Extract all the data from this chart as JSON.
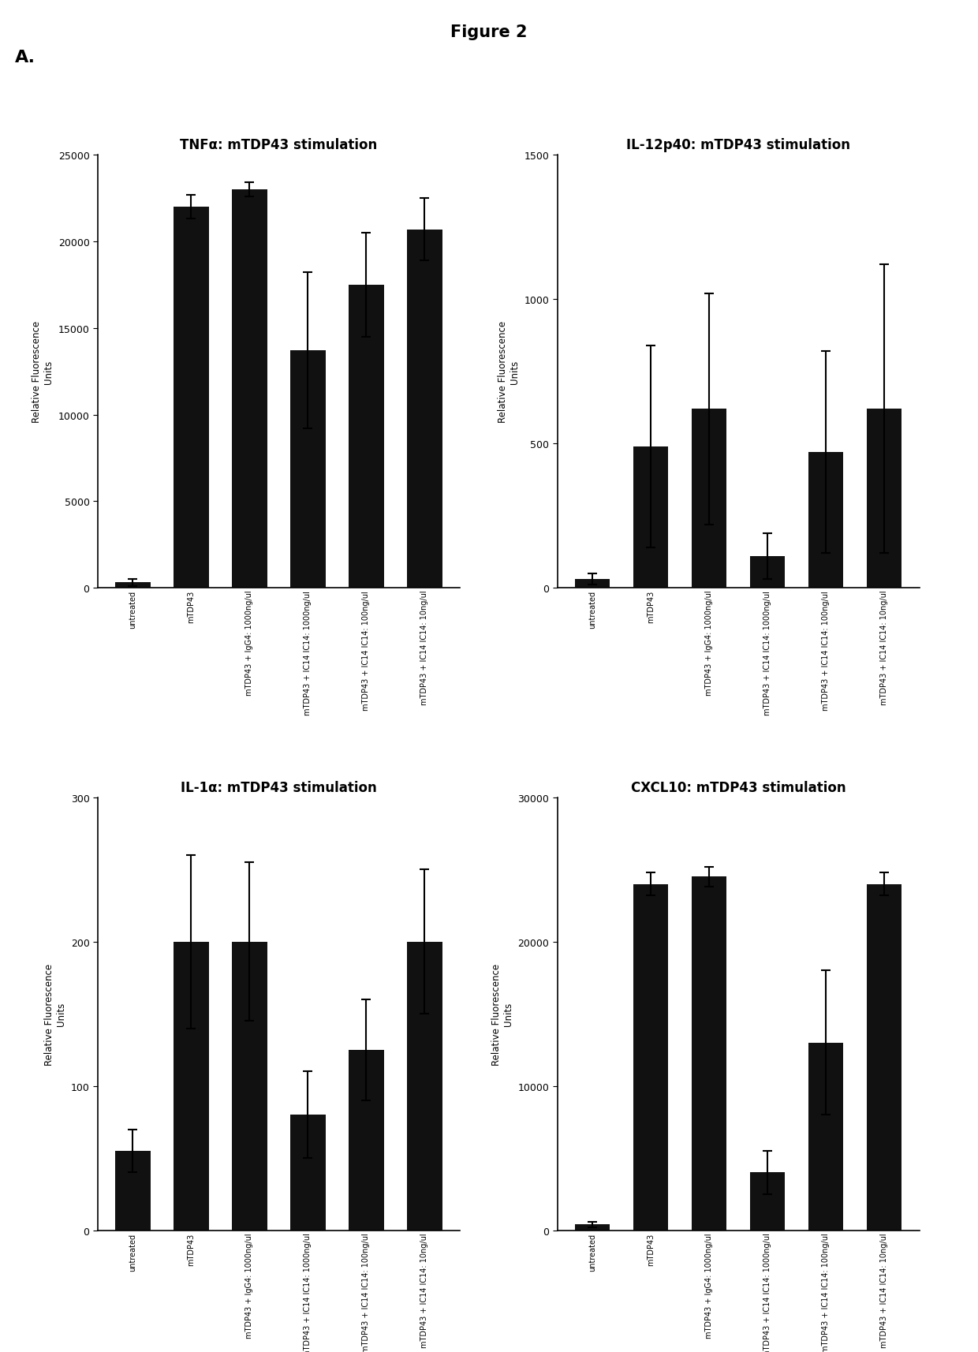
{
  "figure_title": "Figure 2",
  "panel_label": "A.",
  "categories": [
    "untreated",
    "mTDP43",
    "mTDP43 + IgG4: 1000ng/ul",
    "mTDP43 + IC14 IC14: 1000ng/ul",
    "mTDP43 + IC14 IC14: 100ng/ul",
    "mTDP43 + IC14 IC14: 10ng/ul"
  ],
  "subplots": [
    {
      "title": "TNFα: mTDP43 stimulation",
      "ylabel": "Relative Fluorescence\nUnits",
      "ylim": [
        0,
        25000
      ],
      "yticks": [
        0,
        5000,
        10000,
        15000,
        20000,
        25000
      ],
      "values": [
        300,
        22000,
        23000,
        13700,
        17500,
        20700
      ],
      "errors": [
        200,
        700,
        400,
        4500,
        3000,
        1800
      ]
    },
    {
      "title": "IL-12p40: mTDP43 stimulation",
      "ylabel": "Relative Fluorescence\nUnits",
      "ylim": [
        0,
        1500
      ],
      "yticks": [
        0,
        500,
        1000,
        1500
      ],
      "values": [
        30,
        490,
        620,
        110,
        470,
        620
      ],
      "errors": [
        20,
        350,
        400,
        80,
        350,
        500
      ]
    },
    {
      "title": "IL-1α: mTDP43 stimulation",
      "ylabel": "Relative Fluorescence\nUnits",
      "ylim": [
        0,
        300
      ],
      "yticks": [
        0,
        100,
        200,
        300
      ],
      "values": [
        55,
        200,
        200,
        80,
        125,
        200
      ],
      "errors": [
        15,
        60,
        55,
        30,
        35,
        50
      ]
    },
    {
      "title": "CXCL10: mTDP43 stimulation",
      "ylabel": "Relative Fluorescence\nUnits",
      "ylim": [
        0,
        30000
      ],
      "yticks": [
        0,
        10000,
        20000,
        30000
      ],
      "values": [
        400,
        24000,
        24500,
        4000,
        13000,
        24000
      ],
      "errors": [
        200,
        800,
        700,
        1500,
        5000,
        800
      ]
    }
  ],
  "bar_color": "#111111",
  "background_color": "#ffffff",
  "title_fontsize": 12,
  "axis_label_fontsize": 8.5,
  "tick_fontsize": 9,
  "xtick_fontsize": 7,
  "figure_title_fontsize": 15,
  "panel_label_fontsize": 16
}
